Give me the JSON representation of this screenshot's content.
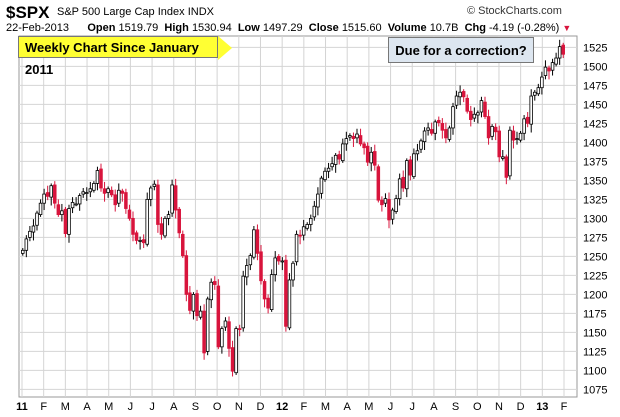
{
  "header": {
    "ticker": "$SPX",
    "name": "S&P 500 Large Cap Index",
    "exchange": "INDX",
    "source": "© StockCharts.com",
    "date": "22-Feb-2013",
    "open_label": "Open",
    "open": "1519.79",
    "high_label": "High",
    "high": "1530.94",
    "low_label": "Low",
    "low": "1497.29",
    "close_label": "Close",
    "close": "1515.60",
    "volume_label": "Volume",
    "volume": "10.7B",
    "chg_label": "Chg",
    "chg": "-4.19 (-0.28%)"
  },
  "annotations": {
    "title": "Weekly Chart Since January 2011",
    "note": "Due for a correction?"
  },
  "colors": {
    "up": "#ffffff",
    "down": "#d8143c",
    "wick": "#000000",
    "grid": "#d4d4d4"
  },
  "chart_data": {
    "type": "candlestick",
    "period": "weekly",
    "ylim": [
      1065,
      1540
    ],
    "yticks": [
      1075,
      1100,
      1125,
      1150,
      1175,
      1200,
      1225,
      1250,
      1275,
      1300,
      1325,
      1350,
      1375,
      1400,
      1425,
      1450,
      1475,
      1500,
      1525
    ],
    "x_labels": [
      "11",
      "F",
      "M",
      "A",
      "M",
      "J",
      "J",
      "A",
      "S",
      "O",
      "N",
      "D",
      "12",
      "F",
      "M",
      "A",
      "M",
      "J",
      "J",
      "A",
      "S",
      "O",
      "N",
      "D",
      "13",
      "F"
    ],
    "x_labels_bold": [
      "11",
      "12",
      "13"
    ],
    "close_series": [
      1258,
      1273,
      1283,
      1290,
      1307,
      1320,
      1332,
      1329,
      1343,
      1320,
      1305,
      1310,
      1280,
      1313,
      1321,
      1319,
      1330,
      1335,
      1334,
      1339,
      1346,
      1363,
      1340,
      1333,
      1339,
      1331,
      1318,
      1337,
      1333,
      1313,
      1300,
      1279,
      1271,
      1271,
      1268,
      1325,
      1340,
      1345,
      1292,
      1279,
      1300,
      1305,
      1344,
      1311,
      1281,
      1251,
      1200,
      1179,
      1200,
      1172,
      1178,
      1123,
      1194,
      1216,
      1213,
      1131,
      1155,
      1165,
      1129,
      1099,
      1155,
      1154,
      1224,
      1238,
      1251,
      1285,
      1254,
      1218,
      1194,
      1182,
      1226,
      1248,
      1244,
      1244,
      1158,
      1219,
      1241,
      1279,
      1277,
      1289,
      1292,
      1300,
      1316,
      1332,
      1353,
      1362,
      1366,
      1372,
      1383,
      1378,
      1398,
      1405,
      1409,
      1405,
      1411,
      1398,
      1393,
      1374,
      1387,
      1370,
      1324,
      1318,
      1326,
      1298,
      1311,
      1326,
      1352,
      1340,
      1376,
      1357,
      1385,
      1389,
      1402,
      1415,
      1419,
      1412,
      1427,
      1426,
      1416,
      1406,
      1419,
      1447,
      1461,
      1466,
      1460,
      1441,
      1430,
      1437,
      1439,
      1455,
      1434,
      1406,
      1421,
      1414,
      1381,
      1381,
      1354,
      1416,
      1403,
      1405,
      1412,
      1431,
      1425,
      1461,
      1466,
      1472,
      1486,
      1499,
      1494,
      1505,
      1511,
      1526,
      1516
    ]
  }
}
